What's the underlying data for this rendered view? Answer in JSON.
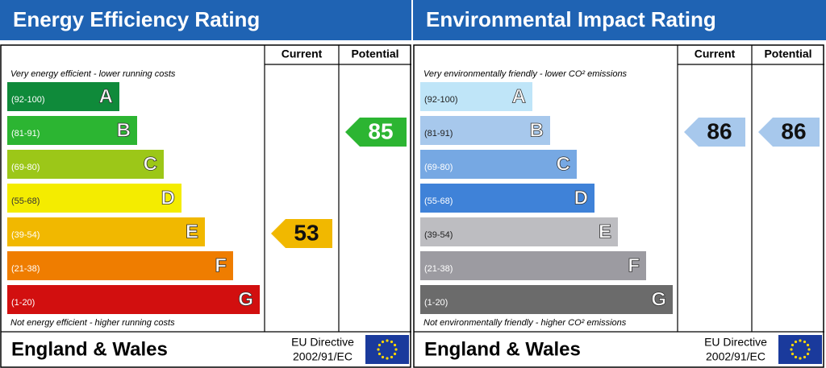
{
  "panels": [
    {
      "title": "Energy Efficiency Rating",
      "headers": [
        "Current",
        "Potential"
      ],
      "top_note": "Very energy efficient - lower running costs",
      "bottom_note": "Not energy efficient - higher running costs",
      "bands": [
        {
          "range": "(92-100)",
          "letter": "A",
          "color": "#0f8a3a",
          "text_color": "#ffffff"
        },
        {
          "range": "(81-91)",
          "letter": "B",
          "color": "#2cb532",
          "text_color": "#ffffff"
        },
        {
          "range": "(69-80)",
          "letter": "C",
          "color": "#9cc718",
          "text_color": "#ffffff"
        },
        {
          "range": "(55-68)",
          "letter": "D",
          "color": "#f4ec00",
          "text_color": "#333333"
        },
        {
          "range": "(39-54)",
          "letter": "E",
          "color": "#f1b800",
          "text_color": "#ffffff"
        },
        {
          "range": "(21-38)",
          "letter": "F",
          "color": "#ef7d00",
          "text_color": "#ffffff"
        },
        {
          "range": "(1-20)",
          "letter": "G",
          "color": "#d20f0f",
          "text_color": "#ffffff"
        }
      ],
      "current": 53,
      "potential": 85,
      "footer": {
        "region": "England & Wales",
        "directive": [
          "EU Directive",
          "2002/91/EC"
        ]
      }
    },
    {
      "title": "Environmental Impact Rating",
      "headers": [
        "Current",
        "Potential"
      ],
      "top_note": "Very environmentally friendly - lower CO² emissions",
      "bottom_note": "Not environmentally friendly - higher CO² emissions",
      "bands": [
        {
          "range": "(92-100)",
          "letter": "A",
          "color": "#bfe5f8",
          "text_color": "#222222"
        },
        {
          "range": "(81-91)",
          "letter": "B",
          "color": "#a7c8ec",
          "text_color": "#222222"
        },
        {
          "range": "(69-80)",
          "letter": "C",
          "color": "#76a8e3",
          "text_color": "#ffffff"
        },
        {
          "range": "(55-68)",
          "letter": "D",
          "color": "#3f82d8",
          "text_color": "#ffffff"
        },
        {
          "range": "(39-54)",
          "letter": "E",
          "color": "#bdbdc1",
          "text_color": "#222222"
        },
        {
          "range": "(21-38)",
          "letter": "F",
          "color": "#9c9ba1",
          "text_color": "#ffffff"
        },
        {
          "range": "(1-20)",
          "letter": "G",
          "color": "#6b6b6b",
          "text_color": "#ffffff"
        }
      ],
      "current": 86,
      "potential": 86,
      "footer": {
        "region": "England & Wales",
        "directive": [
          "EU Directive",
          "2002/91/EC"
        ]
      }
    }
  ]
}
